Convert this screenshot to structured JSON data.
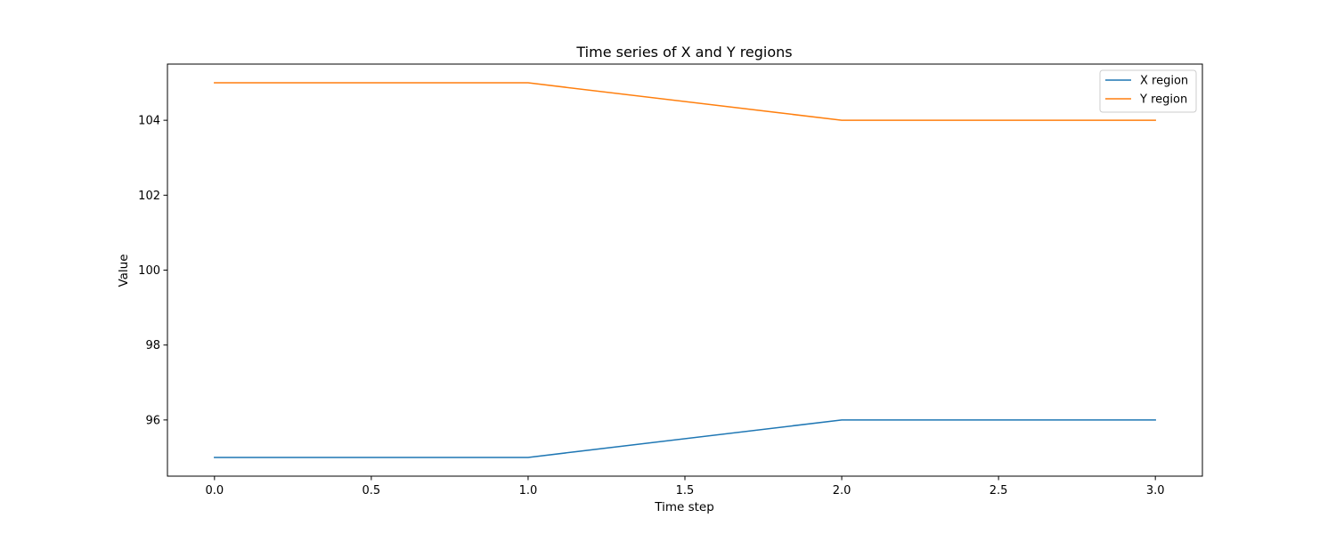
{
  "chart_data": {
    "type": "line",
    "title": "Time series of X and Y regions",
    "xlabel": "Time step",
    "ylabel": "Value",
    "x": [
      0,
      1,
      2,
      3
    ],
    "xlim": [
      -0.15,
      3.15
    ],
    "ylim": [
      94.5,
      105.5
    ],
    "xticks": [
      0.0,
      0.5,
      1.0,
      1.5,
      2.0,
      2.5,
      3.0
    ],
    "xtick_labels": [
      "0.0",
      "0.5",
      "1.0",
      "1.5",
      "2.0",
      "2.5",
      "3.0"
    ],
    "yticks": [
      96,
      98,
      100,
      102,
      104
    ],
    "ytick_labels": [
      "96",
      "98",
      "100",
      "102",
      "104"
    ],
    "grid": false,
    "legend_position": "top-right",
    "series": [
      {
        "name": "X region",
        "values": [
          95,
          95,
          96,
          96
        ],
        "color": "#1f77b4"
      },
      {
        "name": "Y region",
        "values": [
          105,
          105,
          104,
          104
        ],
        "color": "#ff7f0e"
      }
    ]
  }
}
